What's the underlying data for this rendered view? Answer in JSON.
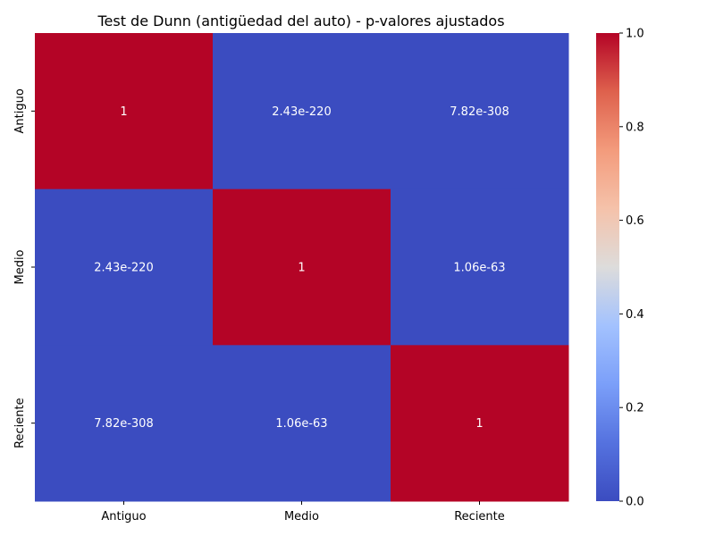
{
  "chart_data": {
    "type": "heatmap",
    "title": "Test de Dunn (antigüedad del auto) - p-valores ajustados",
    "x_categories": [
      "Antiguo",
      "Medio",
      "Reciente"
    ],
    "y_categories": [
      "Antiguo",
      "Medio",
      "Reciente"
    ],
    "values": [
      [
        1,
        2.43e-220,
        7.82e-308
      ],
      [
        2.43e-220,
        1,
        1.06e-63
      ],
      [
        7.82e-308,
        1.06e-63,
        1
      ]
    ],
    "annotations": [
      [
        "1",
        "2.43e-220",
        "7.82e-308"
      ],
      [
        "2.43e-220",
        "1",
        "1.06e-63"
      ],
      [
        "7.82e-308",
        "1.06e-63",
        "1"
      ]
    ],
    "colormap": "coolwarm",
    "colors": {
      "low": "#3b4cc0",
      "mid": "#dddddd",
      "high": "#b40426",
      "annot_text": "#ffffff"
    },
    "colorbar": {
      "range": [
        0,
        1
      ],
      "ticks": [
        0,
        0.2,
        0.4,
        0.6,
        0.8,
        1.0
      ],
      "tick_labels": [
        "0.0",
        "0.2",
        "0.4",
        "0.6",
        "0.8",
        "1.0"
      ]
    }
  }
}
